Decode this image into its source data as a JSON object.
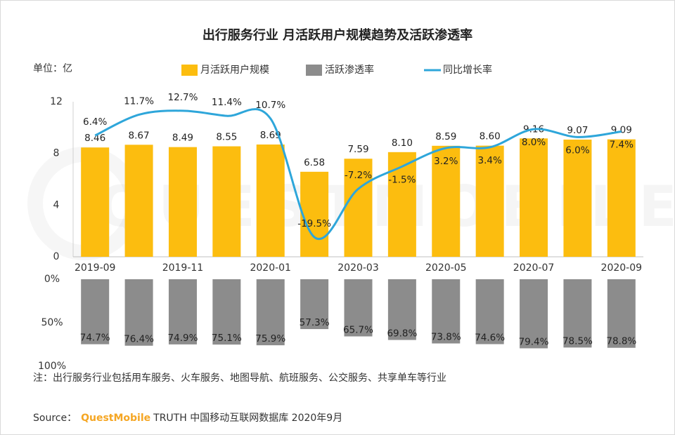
{
  "title": "出行服务行业 月活跃用户规模趋势及活跃渗透率",
  "unit_label": "单位：亿",
  "watermark": "QUESTMOBILE",
  "note": "注：出行服务行业包括用车服务、火车服务、地图导航、航班服务、公交服务、共享单车等行业",
  "source": {
    "label": "Source：",
    "brand": "QuestMobile",
    "text": "TRUTH 中国移动互联网数据库 2020年9月"
  },
  "chart_data": [
    {
      "type": "bar",
      "categories": [
        "2019-09",
        null,
        "2019-11",
        null,
        "2020-01",
        null,
        "2020-03",
        null,
        "2020-05",
        null,
        "2020-07",
        null,
        "2020-09"
      ],
      "ylim": [
        0,
        12
      ],
      "yticks": [
        0,
        4,
        8,
        12
      ],
      "y2lim": [
        -24.5,
        15
      ],
      "series": [
        {
          "name": "月活跃用户规模",
          "type": "bar",
          "color": "#fcbd0f",
          "values": [
            8.46,
            8.67,
            8.49,
            8.55,
            8.69,
            6.58,
            7.59,
            8.1,
            8.59,
            8.6,
            9.16,
            9.07,
            9.09
          ],
          "value_labels": [
            "8.46",
            "8.67",
            "8.49",
            "8.55",
            "8.69",
            "6.58",
            "7.59",
            "8.10",
            "8.59",
            "8.60",
            "9.16",
            "9.07",
            "9.09"
          ]
        },
        {
          "name": "同比增长率",
          "type": "line",
          "axis": "y2",
          "color": "#2ea6da",
          "values": [
            6.4,
            11.7,
            12.7,
            11.4,
            10.7,
            -19.5,
            -7.2,
            -1.5,
            3.2,
            3.4,
            8.0,
            6.0,
            7.4
          ],
          "value_labels": [
            "6.4%",
            "11.7%",
            "12.7%",
            "11.4%",
            "10.7%",
            "-19.5%",
            "-7.2%",
            "-1.5%",
            "3.2%",
            "3.4%",
            "8.0%",
            "6.0%",
            "7.4%"
          ]
        }
      ]
    },
    {
      "type": "bar",
      "ylim": [
        0,
        100
      ],
      "inverted": true,
      "yticks": [
        {
          "value": 0,
          "label": "0%"
        },
        {
          "value": 50,
          "label": "50%"
        },
        {
          "value": 100,
          "label": "100%"
        }
      ],
      "series": [
        {
          "name": "活跃渗透率",
          "type": "bar",
          "color": "#8c8c8c",
          "values": [
            74.7,
            76.4,
            74.9,
            75.1,
            75.9,
            57.3,
            65.7,
            69.8,
            73.8,
            74.6,
            79.4,
            78.5,
            78.8
          ],
          "value_labels": [
            "74.7%",
            "76.4%",
            "74.9%",
            "75.1%",
            "75.9%",
            "57.3%",
            "65.7%",
            "69.8%",
            "73.8%",
            "74.6%",
            "79.4%",
            "78.5%",
            "78.8%"
          ]
        }
      ]
    }
  ]
}
